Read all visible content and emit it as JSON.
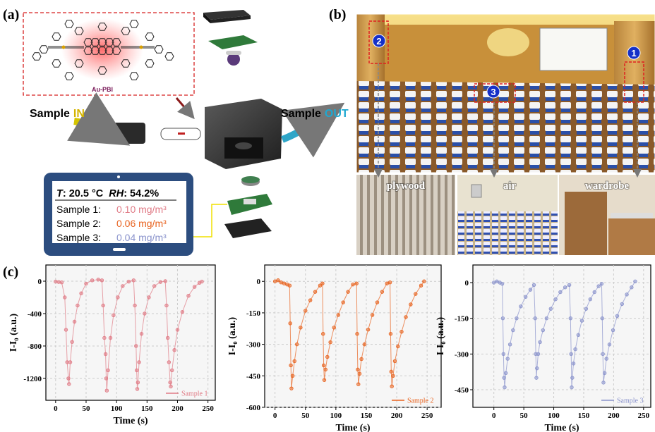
{
  "panel_labels": [
    "(a)",
    "(b)",
    "(c)"
  ],
  "panel_a": {
    "molecule": "Au-PBI",
    "inlet": {
      "text": "Sample",
      "highlight": "IN"
    },
    "outlet": {
      "text": "Sample",
      "highlight": "OUT"
    },
    "display": {
      "t_symbol": "T",
      "t_reading": ": 20.5 °C",
      "rh_symbol": "RH",
      "rh_reading": ": 54.2%",
      "samples": [
        {
          "name": "Sample 1:",
          "reading": "0.10 mg/m³",
          "color": "#e07a85"
        },
        {
          "name": "Sample 2:",
          "reading": "0.06 mg/m³",
          "color": "#e8621e"
        },
        {
          "name": "Sample 3:",
          "reading": "0.04 mg/m³",
          "color": "#8a93cc"
        }
      ]
    }
  },
  "panel_b": {
    "markers": [
      "1",
      "2",
      "3"
    ],
    "locations": [
      "plywood",
      "air",
      "wardrobe"
    ]
  },
  "chart_data": [
    {
      "type": "line",
      "xlabel": "Time (s)",
      "ylabel": "I-I₀ (a.u.)",
      "grid": true,
      "legend": "lower right",
      "xlim": [
        -16,
        262
      ],
      "xticks": [
        0,
        50,
        100,
        150,
        200,
        250
      ],
      "ylim": [
        -1470,
        200
      ],
      "yticks": [
        0,
        -400,
        -800,
        -1200
      ],
      "x": [
        0,
        5,
        10,
        15,
        17,
        19,
        21,
        22,
        24,
        27,
        31,
        36,
        42,
        50,
        60,
        70,
        76,
        78,
        80,
        82,
        83,
        84,
        86,
        90,
        95,
        102,
        110,
        120,
        128,
        130,
        132,
        133,
        134,
        135,
        137,
        141,
        146,
        153,
        162,
        172,
        180,
        182,
        184,
        186,
        188,
        189,
        191,
        195,
        200,
        208,
        218,
        228,
        236,
        240
      ],
      "series": [
        {
          "name": "Sample 1",
          "color": "#e07a85",
          "values": [
            -5,
            -10,
            -15,
            -200,
            -600,
            -1000,
            -1200,
            -1270,
            -1000,
            -750,
            -500,
            -300,
            -150,
            -30,
            10,
            20,
            10,
            -300,
            -700,
            -900,
            -1200,
            -1350,
            -1100,
            -700,
            -420,
            -200,
            -60,
            -5,
            10,
            -300,
            -800,
            -1100,
            -1330,
            -1250,
            -1000,
            -650,
            -400,
            -200,
            -60,
            -10,
            0,
            -300,
            -700,
            -1000,
            -1250,
            -1300,
            -1100,
            -850,
            -600,
            -380,
            -180,
            -70,
            -20,
            -5
          ]
        }
      ]
    },
    {
      "type": "line",
      "xlabel": "Time (s)",
      "ylabel": "I-I₀ (a.u.)",
      "grid": true,
      "legend": "lower right",
      "xlim": [
        -17,
        273
      ],
      "xticks": [
        0,
        50,
        100,
        150,
        200,
        250
      ],
      "ylim": [
        -600,
        78
      ],
      "yticks": [
        0,
        -150,
        -300,
        -450,
        -600
      ],
      "x": [
        0,
        5,
        10,
        15,
        20,
        24,
        25,
        26,
        27,
        29,
        32,
        36,
        42,
        50,
        58,
        66,
        74,
        78,
        79,
        80,
        81,
        83,
        86,
        91,
        97,
        104,
        112,
        120,
        128,
        134,
        135,
        136,
        137,
        139,
        142,
        147,
        153,
        160,
        168,
        176,
        184,
        189,
        190,
        191,
        192,
        194,
        197,
        202,
        208,
        215,
        223,
        231,
        240,
        245
      ],
      "series": [
        {
          "name": "Sample 2",
          "color": "#e8621e",
          "values": [
            0,
            5,
            -5,
            -10,
            -15,
            -20,
            -200,
            -400,
            -510,
            -450,
            -380,
            -300,
            -220,
            -140,
            -90,
            -50,
            -20,
            -10,
            -250,
            -400,
            -470,
            -420,
            -360,
            -290,
            -220,
            -160,
            -100,
            -50,
            -15,
            -10,
            -250,
            -420,
            -490,
            -440,
            -370,
            -300,
            -230,
            -160,
            -100,
            -50,
            -10,
            -5,
            -250,
            -430,
            -500,
            -450,
            -380,
            -310,
            -240,
            -170,
            -110,
            -60,
            -20,
            0
          ]
        }
      ]
    },
    {
      "type": "line",
      "xlabel": "Time (s)",
      "ylabel": "I-I₀ (a.u.)",
      "grid": true,
      "legend": "lower right",
      "xlim": [
        -35,
        262
      ],
      "xticks": [
        0,
        50,
        100,
        150,
        200,
        250
      ],
      "ylim": [
        -524,
        74
      ],
      "yticks": [
        0,
        -150,
        -300,
        -450
      ],
      "x": [
        0,
        5,
        10,
        14,
        15,
        16,
        17,
        18,
        20,
        23,
        27,
        32,
        38,
        45,
        53,
        61,
        67,
        69,
        70,
        71,
        72,
        74,
        77,
        82,
        88,
        95,
        103,
        111,
        119,
        126,
        128,
        129,
        130,
        131,
        133,
        136,
        141,
        147,
        154,
        161,
        168,
        175,
        180,
        181,
        182,
        183,
        185,
        188,
        193,
        199,
        206,
        214,
        222,
        230,
        236
      ],
      "series": [
        {
          "name": "Sample 3",
          "color": "#8a93cc",
          "values": [
            0,
            5,
            0,
            -5,
            -150,
            -300,
            -400,
            -440,
            -380,
            -320,
            -260,
            -200,
            -150,
            -100,
            -60,
            -30,
            -10,
            -150,
            -300,
            -400,
            -360,
            -300,
            -250,
            -200,
            -150,
            -110,
            -70,
            -40,
            -20,
            -10,
            -150,
            -300,
            -440,
            -400,
            -340,
            -280,
            -220,
            -160,
            -110,
            -70,
            -40,
            -15,
            -5,
            -150,
            -300,
            -420,
            -380,
            -320,
            -260,
            -200,
            -140,
            -90,
            -50,
            -20,
            5
          ]
        }
      ]
    }
  ]
}
